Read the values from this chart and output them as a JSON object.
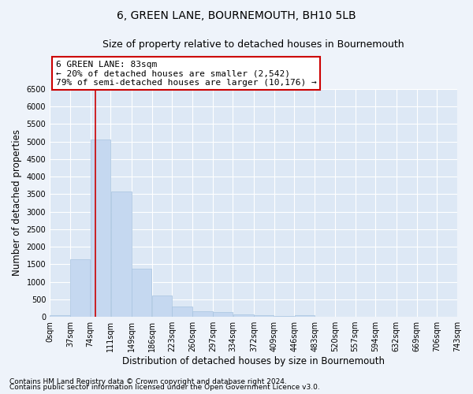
{
  "title": "6, GREEN LANE, BOURNEMOUTH, BH10 5LB",
  "subtitle": "Size of property relative to detached houses in Bournemouth",
  "xlabel": "Distribution of detached houses by size in Bournemouth",
  "ylabel": "Number of detached properties",
  "footnote1": "Contains HM Land Registry data © Crown copyright and database right 2024.",
  "footnote2": "Contains public sector information licensed under the Open Government Licence v3.0.",
  "annotation_title": "6 GREEN LANE: 83sqm",
  "annotation_line1": "← 20% of detached houses are smaller (2,542)",
  "annotation_line2": "79% of semi-detached houses are larger (10,176) →",
  "property_size_sqm": 83,
  "bar_left_edges": [
    0,
    37,
    74,
    111,
    149,
    186,
    223,
    260,
    297,
    334,
    372,
    409,
    446,
    483,
    520,
    557,
    594,
    632,
    669,
    706
  ],
  "bar_widths": [
    37,
    37,
    37,
    38,
    37,
    37,
    37,
    37,
    37,
    38,
    37,
    37,
    37,
    37,
    37,
    37,
    38,
    37,
    37,
    37
  ],
  "bar_heights": [
    55,
    1650,
    5050,
    3580,
    1380,
    600,
    300,
    155,
    130,
    80,
    55,
    35,
    40,
    5,
    3,
    2,
    1,
    1,
    0,
    0
  ],
  "tick_labels": [
    "0sqm",
    "37sqm",
    "74sqm",
    "111sqm",
    "149sqm",
    "186sqm",
    "223sqm",
    "260sqm",
    "297sqm",
    "334sqm",
    "372sqm",
    "409sqm",
    "446sqm",
    "483sqm",
    "520sqm",
    "557sqm",
    "594sqm",
    "632sqm",
    "669sqm",
    "706sqm",
    "743sqm"
  ],
  "tick_positions": [
    0,
    37,
    74,
    111,
    149,
    186,
    223,
    260,
    297,
    334,
    372,
    409,
    446,
    483,
    520,
    557,
    594,
    632,
    669,
    706,
    743
  ],
  "bar_color": "#c5d8f0",
  "bar_edge_color": "#a8c4e0",
  "red_line_x": 83,
  "ylim": [
    0,
    6500
  ],
  "xlim": [
    0,
    743
  ],
  "yticks": [
    0,
    500,
    1000,
    1500,
    2000,
    2500,
    3000,
    3500,
    4000,
    4500,
    5000,
    5500,
    6000,
    6500
  ],
  "background_color": "#eef3fa",
  "plot_bg_color": "#dde8f5",
  "grid_color": "#ffffff",
  "annotation_box_color": "#ffffff",
  "annotation_box_edge": "#cc0000",
  "red_line_color": "#cc0000",
  "title_fontsize": 10,
  "subtitle_fontsize": 9,
  "axis_label_fontsize": 8.5,
  "tick_fontsize": 7,
  "annotation_fontsize": 8,
  "footnote_fontsize": 6.5
}
